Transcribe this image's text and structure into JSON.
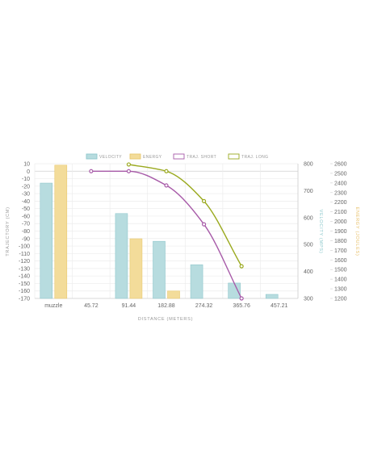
{
  "chart_data": {
    "type": "bar",
    "categories": [
      "muzzle",
      "45.72",
      "91.44",
      "182.88",
      "274.32",
      "365.76",
      "457.21"
    ],
    "xlabel": "DISTANCE (METERS)",
    "axes": {
      "trajectory": {
        "label": "TRAJECTORY (CM)",
        "range": [
          -170,
          10
        ],
        "step": 10,
        "position": "left"
      },
      "velocity": {
        "label": "VELOCITY (MPS)",
        "range": [
          300,
          800
        ],
        "step": 100,
        "position": "right"
      },
      "energy": {
        "label": "ENERGY (JOULES)",
        "range": [
          1200,
          2600
        ],
        "step": 100,
        "position": "right"
      }
    },
    "legend": {
      "position": "top",
      "items": [
        {
          "label": "VELOCITY",
          "color": "#b7dcdf",
          "border": "#90c7cc"
        },
        {
          "label": "ENERGY",
          "color": "#f3dc9a",
          "border": "#e8c86f"
        },
        {
          "label": "TRAJ. SHORT",
          "color": "#ffffff",
          "border": "#a75aa8"
        },
        {
          "label": "TRAJ. LONG",
          "color": "#ffffff",
          "border": "#9aa91e"
        }
      ]
    },
    "series": [
      {
        "name": "VELOCITY",
        "type": "bar",
        "axis": "velocity",
        "color": "#b7dcdf",
        "border": "#90c7cc",
        "values": [
          728,
          null,
          615,
          512,
          425,
          357,
          315
        ]
      },
      {
        "name": "ENERGY",
        "type": "bar",
        "axis": "energy",
        "color": "#f3dc9a",
        "border": "#e8c86f",
        "values": [
          2585,
          null,
          1820,
          1277,
          null,
          null,
          null
        ]
      },
      {
        "name": "TRAJ. SHORT",
        "type": "line",
        "axis": "trajectory",
        "color": "#a75aa8",
        "values": [
          null,
          0,
          0,
          -19,
          -71,
          -170,
          null
        ]
      },
      {
        "name": "TRAJ. LONG",
        "type": "line",
        "axis": "trajectory",
        "color": "#9aa91e",
        "values": [
          null,
          null,
          9,
          0,
          -40,
          -127,
          null
        ]
      }
    ],
    "grid": true
  }
}
